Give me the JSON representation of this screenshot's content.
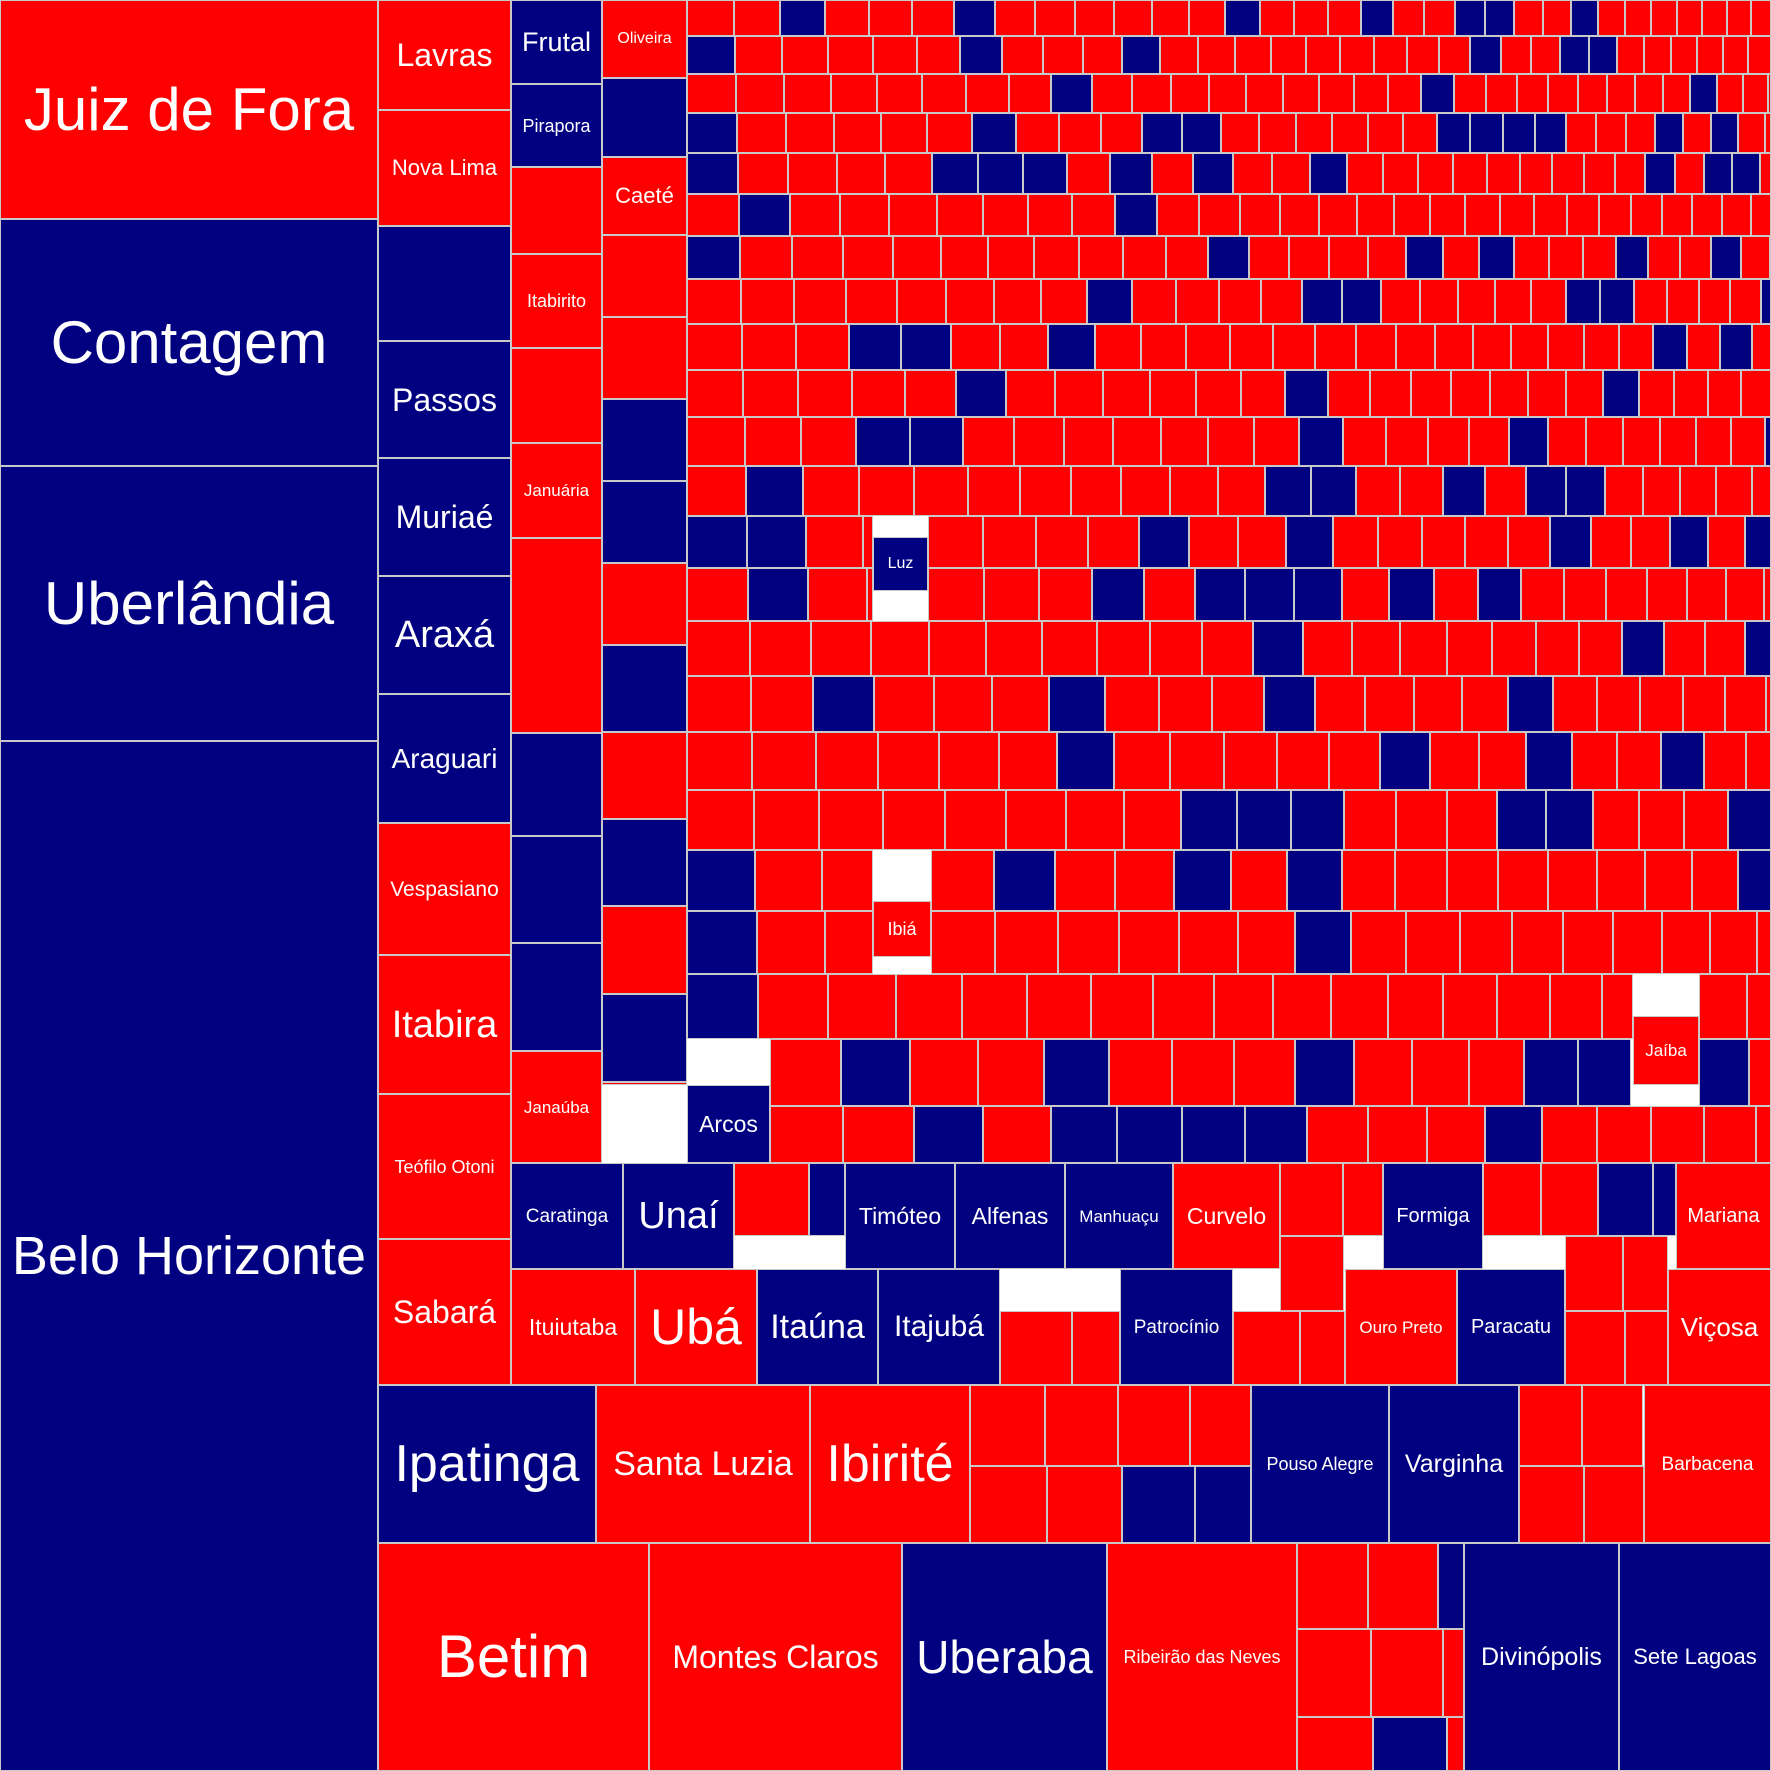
{
  "chart_data": {
    "type": "treemap",
    "title": "",
    "colors": {
      "red": "#ff0000",
      "blue": "#000080",
      "text": "#ffffff",
      "border": "#c8c8c8"
    },
    "labeled_tiles": [
      {
        "name": "Juiz de Fora",
        "color": "red"
      },
      {
        "name": "Contagem",
        "color": "blue"
      },
      {
        "name": "Uberlândia",
        "color": "blue"
      },
      {
        "name": "Belo Horizonte",
        "color": "blue"
      },
      {
        "name": "Lavras",
        "color": "red"
      },
      {
        "name": "Nova Lima",
        "color": "red"
      },
      {
        "name": "Passos",
        "color": "blue"
      },
      {
        "name": "Muriaé",
        "color": "blue"
      },
      {
        "name": "Araxá",
        "color": "blue"
      },
      {
        "name": "Araguari",
        "color": "blue"
      },
      {
        "name": "Vespasiano",
        "color": "red"
      },
      {
        "name": "Itabira",
        "color": "red"
      },
      {
        "name": "Teófilo Otoni",
        "color": "red"
      },
      {
        "name": "Sabará",
        "color": "red"
      },
      {
        "name": "Frutal",
        "color": "blue"
      },
      {
        "name": "Pirapora",
        "color": "blue"
      },
      {
        "name": "Itabirito",
        "color": "red"
      },
      {
        "name": "Januária",
        "color": "red"
      },
      {
        "name": "Janaúba",
        "color": "red"
      },
      {
        "name": "Oliveira",
        "color": "red"
      },
      {
        "name": "Caeté",
        "color": "red"
      },
      {
        "name": "Luz",
        "color": "blue"
      },
      {
        "name": "Ibiá",
        "color": "red"
      },
      {
        "name": "Arcos",
        "color": "blue"
      },
      {
        "name": "Jaíba",
        "color": "red"
      },
      {
        "name": "Caratinga",
        "color": "blue"
      },
      {
        "name": "Unaí",
        "color": "blue"
      },
      {
        "name": "Timóteo",
        "color": "blue"
      },
      {
        "name": "Alfenas",
        "color": "blue"
      },
      {
        "name": "Manhuaçu",
        "color": "blue"
      },
      {
        "name": "Curvelo",
        "color": "red"
      },
      {
        "name": "Formiga",
        "color": "blue"
      },
      {
        "name": "Mariana",
        "color": "red"
      },
      {
        "name": "Ituiutaba",
        "color": "red"
      },
      {
        "name": "Ubá",
        "color": "red"
      },
      {
        "name": "Itaúna",
        "color": "blue"
      },
      {
        "name": "Itajubá",
        "color": "blue"
      },
      {
        "name": "Patrocínio",
        "color": "blue"
      },
      {
        "name": "Ouro Preto",
        "color": "red"
      },
      {
        "name": "Paracatu",
        "color": "blue"
      },
      {
        "name": "Viçosa",
        "color": "red"
      },
      {
        "name": "Ipatinga",
        "color": "blue"
      },
      {
        "name": "Santa Luzia",
        "color": "red"
      },
      {
        "name": "Ibirité",
        "color": "red"
      },
      {
        "name": "Pouso Alegre",
        "color": "blue"
      },
      {
        "name": "Varginha",
        "color": "blue"
      },
      {
        "name": "Barbacena",
        "color": "red"
      },
      {
        "name": "Betim",
        "color": "red"
      },
      {
        "name": "Montes Claros",
        "color": "red"
      },
      {
        "name": "Uberaba",
        "color": "blue"
      },
      {
        "name": "Ribeirão das Neves",
        "color": "red"
      },
      {
        "name": "Divinópolis",
        "color": "blue"
      },
      {
        "name": "Sete Lagoas",
        "color": "blue"
      }
    ],
    "unlabeled_tiles": {
      "red_count": 900,
      "blue_count": 200
    }
  }
}
